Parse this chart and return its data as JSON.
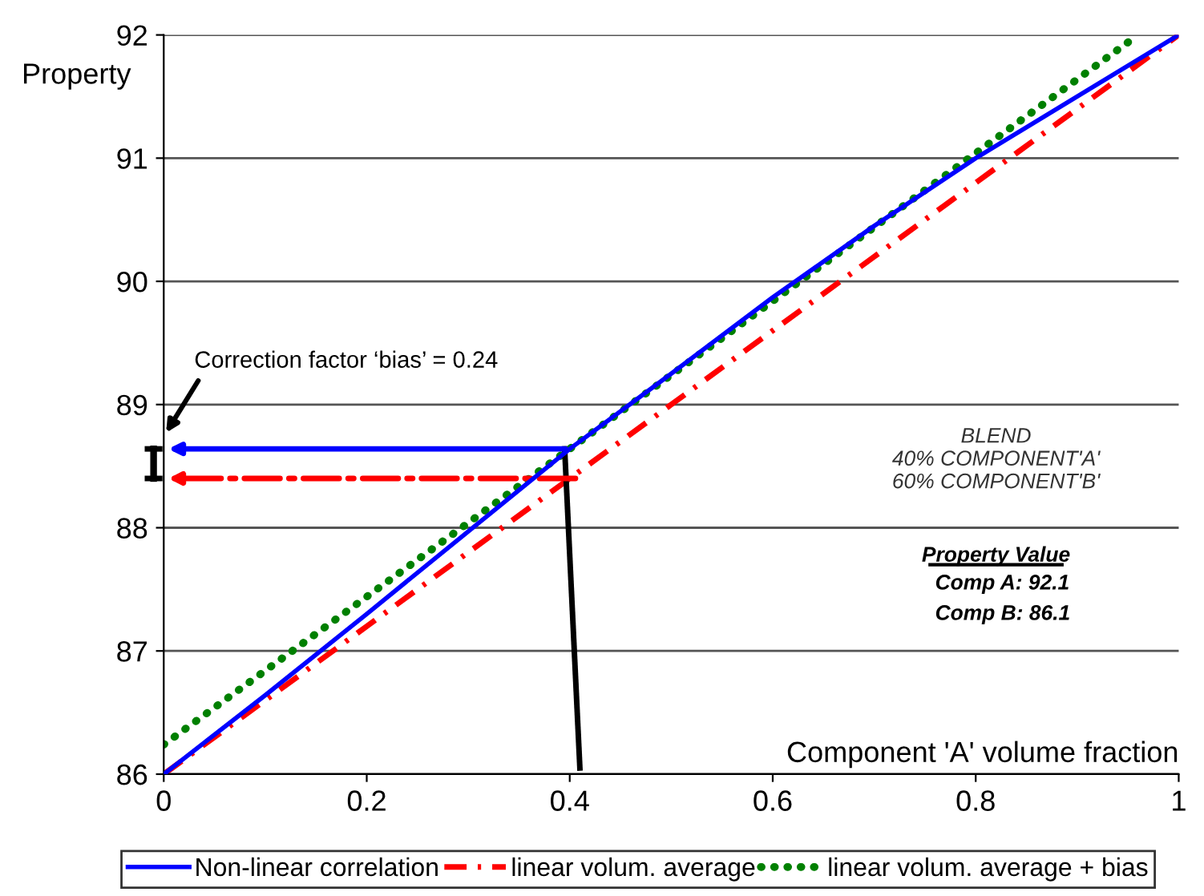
{
  "chart_data": {
    "type": "line",
    "x": [
      0,
      0.1,
      0.2,
      0.3,
      0.4,
      0.5,
      0.6,
      0.7,
      0.8,
      0.9,
      1
    ],
    "series": [
      {
        "name": "Non-linear correlation",
        "color": "#0000ff",
        "line_style": "solid",
        "values": [
          86,
          86.64,
          87.3,
          87.97,
          88.64,
          89.25,
          89.87,
          90.45,
          91.0,
          91.5,
          92
        ]
      },
      {
        "name": "linear volum. average",
        "color": "#ff0000",
        "line_style": "dashdot",
        "values": [
          86,
          86.6,
          87.2,
          87.8,
          88.4,
          89.0,
          89.6,
          90.2,
          90.8,
          91.4,
          92
        ]
      },
      {
        "name": "linear volum. average + bias",
        "color": "#008000",
        "line_style": "dotted",
        "x": [
          0,
          0.2,
          0.4,
          0.6,
          0.8,
          0.96
        ],
        "values": [
          86.24,
          87.44,
          88.64,
          89.84,
          91.04,
          92
        ]
      }
    ],
    "xlabel": "Component 'A' volume fraction",
    "ylabel": "Property",
    "xlim": [
      0,
      1
    ],
    "ylim": [
      86,
      92
    ],
    "xticks": [
      0,
      0.2,
      0.4,
      0.6,
      0.8,
      1
    ],
    "yticks": [
      86,
      87,
      88,
      89,
      90,
      91,
      92
    ],
    "grid": "y",
    "legend": "bottom",
    "annotations": [
      "Correction factor ‘bias’ = 0.24",
      "BLEND\n40% COMPONENT'A'\n60% COMPONENT'B'",
      "Property Value",
      "Comp A: 92.1\nComp B: 86.1"
    ]
  }
}
